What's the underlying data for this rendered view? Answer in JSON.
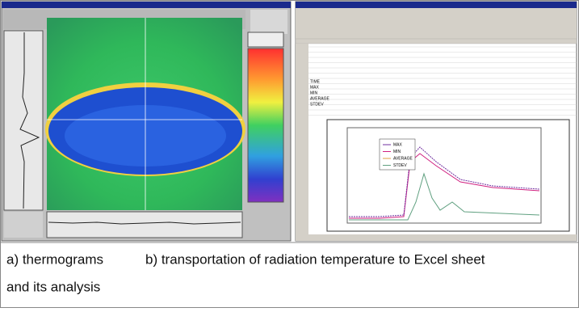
{
  "caption": {
    "part_a": "a) thermograms",
    "part_b": "b) transportation of radiation temperature to Excel sheet",
    "part_a_cont": "and its analysis"
  },
  "excel": {
    "row_labels": [
      "TIME",
      "MAX",
      "MIN",
      "AVERAGE",
      "STDEV"
    ],
    "legend": [
      "MAX",
      "MIN",
      "AVERAGE",
      "STDEV"
    ]
  }
}
